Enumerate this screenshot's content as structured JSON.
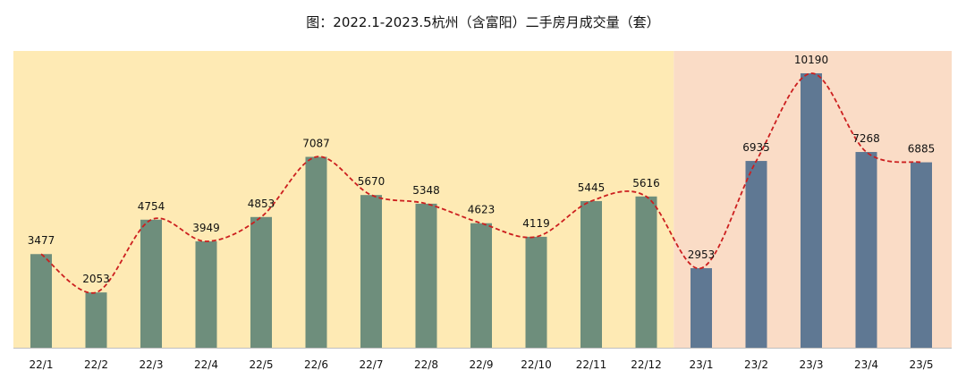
{
  "chart_data": {
    "type": "bar",
    "title": "图：2022.1-2023.5杭州（含富阳）二手房月成交量（套）",
    "categories": [
      "22/1",
      "22/2",
      "22/3",
      "22/4",
      "22/5",
      "22/6",
      "22/7",
      "22/8",
      "22/9",
      "22/10",
      "22/11",
      "22/12",
      "23/1",
      "23/2",
      "23/3",
      "23/4",
      "23/5"
    ],
    "series": [
      {
        "values": [
          3477,
          2053,
          4754,
          3949,
          4853,
          7087,
          5670,
          5348,
          4623,
          4119,
          5445,
          5616,
          2953,
          6935,
          10190,
          7268,
          6885
        ]
      }
    ],
    "overlay_line": "smoothed dashed trend through bar tops",
    "ylim": [
      0,
      10190
    ],
    "grid": false,
    "legend": "none",
    "regions": [
      {
        "range": [
          "22/1",
          "22/12"
        ],
        "color": "#feeab4"
      },
      {
        "range": [
          "23/1",
          "23/5"
        ],
        "color": "#fadcc6"
      }
    ],
    "colors": {
      "bar_2022": "#6e8e7c",
      "bar_2023": "#5f7893",
      "trend_line": "#cc1f1f",
      "axis": "#bfbfbf"
    }
  }
}
